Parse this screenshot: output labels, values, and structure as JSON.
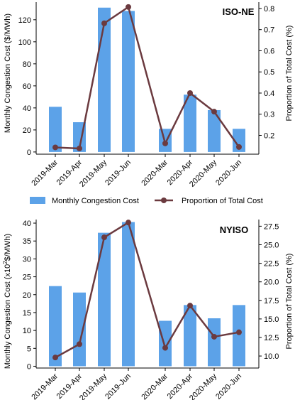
{
  "colors": {
    "bar": "#5ca2e8",
    "line": "#6b3a3f"
  },
  "legend": {
    "placement": "between panels, centered",
    "bar_label": "Monthly Congestion Cost",
    "line_label": "Proportion of Total Cost"
  },
  "chart_data": [
    {
      "type": "bar+line",
      "panel_label": "ISO-NE",
      "categories": [
        "2019-Mar",
        "2019-Apr",
        "2019-May",
        "2019-Jun",
        "2020-Mar",
        "2020-Apr",
        "2020-May",
        "2020-Jun"
      ],
      "series": [
        {
          "name": "Monthly Congestion Cost",
          "type": "bar",
          "axis": "left",
          "values": [
            41,
            27,
            131,
            128,
            21,
            52,
            38,
            21
          ]
        },
        {
          "name": "Proportion of Total Cost",
          "type": "line",
          "axis": "right",
          "values": [
            0.143,
            0.138,
            0.73,
            0.807,
            0.162,
            0.4,
            0.312,
            0.145
          ]
        }
      ],
      "ylabel": "Monthly Congestion Cost ($/MWh)",
      "y2label": "Proportion of Total Cost (%)",
      "ylim": [
        -2,
        136
      ],
      "y2lim": [
        0.111,
        0.83
      ],
      "yticks": [
        "0",
        "20",
        "40",
        "60",
        "80",
        "100",
        "120"
      ],
      "y2ticks": [
        "0.2",
        "0.3",
        "0.4",
        "0.5",
        "0.6",
        "0.7",
        "0.8"
      ],
      "grid": false
    },
    {
      "type": "bar+line",
      "panel_label": "NYISO",
      "categories": [
        "2019-Mar",
        "2019-Apr",
        "2019-May",
        "2019-Jun",
        "2020-Mar",
        "2020-Apr",
        "2020-May",
        "2020-Jun"
      ],
      "series": [
        {
          "name": "Monthly Congestion Cost",
          "type": "bar",
          "axis": "left",
          "values": [
            22.4,
            20.6,
            37.3,
            40.3,
            12.7,
            17.1,
            13.4,
            17.1
          ]
        },
        {
          "name": "Proportion of Total Cost",
          "type": "line",
          "axis": "right",
          "values": [
            9.8,
            11.6,
            26.0,
            28.0,
            11.1,
            16.8,
            12.6,
            13.2
          ]
        }
      ],
      "ylabel": "Monthly Congestion Cost (x10²$/MWh)",
      "y2label": "Proportion of Total Cost (%)",
      "ylim": [
        -0.5,
        41
      ],
      "y2lim": [
        8.38,
        28.4
      ],
      "yticks": [
        "0",
        "5",
        "10",
        "15",
        "20",
        "25",
        "30",
        "35",
        "40"
      ],
      "y2ticks": [
        "10.0",
        "12.5",
        "15.0",
        "17.5",
        "20.0",
        "22.5",
        "25.0",
        "27.5"
      ],
      "grid": false
    }
  ]
}
